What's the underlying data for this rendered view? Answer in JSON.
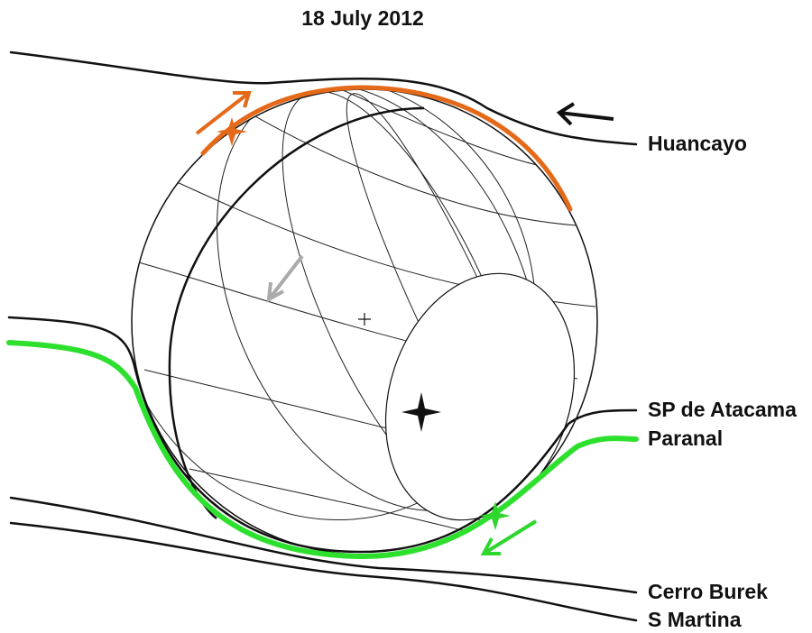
{
  "title": "18 July 2012",
  "chords": [
    {
      "label": "Huancayo"
    },
    {
      "label": "SP de Atacama"
    },
    {
      "label": "Paranal"
    },
    {
      "label": "Cerro Burek"
    },
    {
      "label": "S Martina"
    }
  ]
}
